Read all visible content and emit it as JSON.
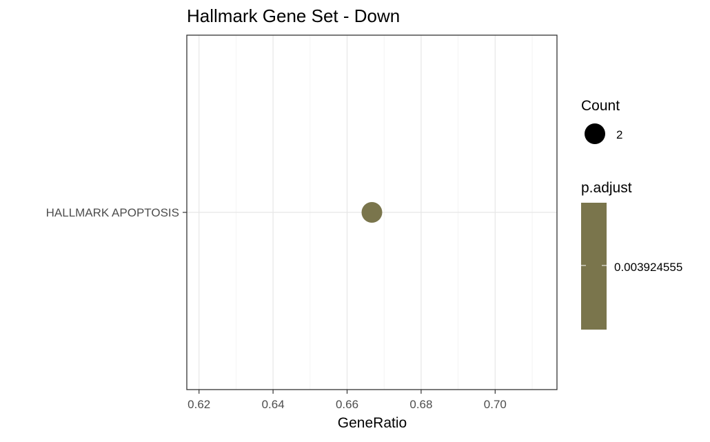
{
  "chart_data": {
    "type": "scatter",
    "title": "Hallmark Gene Set - Down",
    "xlabel": "GeneRatio",
    "ylabel": "",
    "xlim": [
      0.6167,
      0.7167
    ],
    "x_ticks": [
      "0.62",
      "0.64",
      "0.66",
      "0.68",
      "0.70"
    ],
    "x_tick_values": [
      0.62,
      0.64,
      0.66,
      0.68,
      0.7
    ],
    "grid": true,
    "categories": [
      "HALLMARK APOPTOSIS"
    ],
    "points": [
      {
        "category": "HALLMARK APOPTOSIS",
        "x": 0.6667,
        "count": 2,
        "p_adjust": 0.003924555
      }
    ],
    "legend": {
      "placement": "right",
      "size": {
        "title": "Count",
        "label": "2"
      },
      "color": {
        "title": "p.adjust",
        "label": "0.003924555"
      }
    },
    "colors": {
      "point": "#7A754C",
      "colorbar": "#7A754C",
      "grid_major": "#E6E6E6",
      "grid_minor": "#F2F2F2",
      "panel_border": "#333333",
      "axis_text": "#4D4D4D",
      "text": "#000000"
    }
  }
}
